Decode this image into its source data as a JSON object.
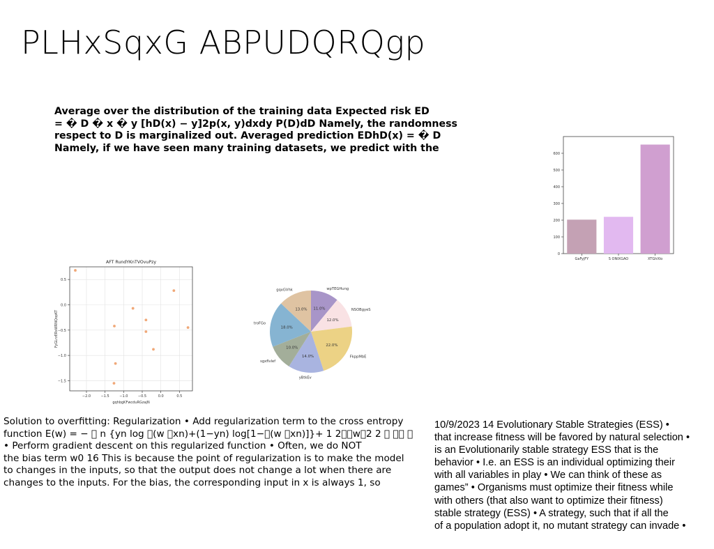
{
  "title": "PLHxSqxG ABPUDQRQgp",
  "bold_paragraph": [
    "Average over the distribution of the training data Expected risk ED",
    "= � D � x � y [hD(x) − y]2p(x, y)dxdy P(D)dD Namely, the randomness",
    "respect to D is marginalized out. Averaged prediction EDhD(x) = � D",
    "Namely, if we have seen many training datasets, we predict with the"
  ],
  "left_paragraph": [
    "Solution to overfitting: Regularization • Add regularization term to the cross entropy",
    "function E(w) = − 􀀀 n {yn log 􀀀(w 􀀀xn)+(1−yn) log[1−􀀀(w 􀀀xn)]}+ 1 2􀀀􀀀w􀀀2 2 􀀀 􀀀􀀀 􀀀",
    "• Perform gradient descent on this regularized function • Often, we do NOT",
    "the bias term w0 16 This is because the point of regularization is to make the model",
    "to changes in the inputs, so that the output does not change a lot when there are",
    "changes to the inputs. For the bias, the corresponding input in x is always 1, so"
  ],
  "right_paragraph": [
    "10/9/2023 14 Evolutionary Stable Strategies (ESS) •",
    "that increase fitness will be favored by natural selection •",
    "is an Evolutionarily stable strategy ESS that is the",
    "behavior • I.e. an ESS is an individual optimizing their",
    "with all variables in play • We can think of these as",
    "games” • Organisms must optimize their fitness while",
    "with others (that also want to optimize their fitness)",
    "stable strategy (ESS) • A strategy, such that if all the",
    "of a population adopt it, no mutant strategy can invade •"
  ],
  "chart_data": [
    {
      "type": "bar",
      "categories": [
        "GaFyjFY",
        "S ONIXGAO",
        "XTGhXIo"
      ],
      "values": [
        203,
        220,
        652
      ],
      "colors": [
        "#c4a1b4",
        "#e2b9f0",
        "#d09fd0"
      ],
      "ylim": [
        0,
        700
      ],
      "yticks": [
        0,
        100,
        200,
        300,
        400,
        500,
        600
      ],
      "grid": false
    },
    {
      "type": "scatter",
      "title": "AFT RundYKnTVOvuPzy",
      "xlabel": "gqhbgKFwcduRGzajN",
      "ylabel": "FyGLrzERsWRNQopKT",
      "xlim": [
        -2.45,
        0.85
      ],
      "ylim": [
        -1.7,
        0.75
      ],
      "xticks": [
        -2.0,
        -1.5,
        -1.0,
        -0.5,
        0.0,
        0.5
      ],
      "yticks": [
        0.5,
        0.0,
        -0.5,
        -1.0,
        -1.5
      ],
      "points": [
        {
          "x": -2.3,
          "y": 0.68
        },
        {
          "x": 0.35,
          "y": 0.28
        },
        {
          "x": -0.75,
          "y": -0.07
        },
        {
          "x": -0.4,
          "y": -0.3
        },
        {
          "x": -1.25,
          "y": -0.42
        },
        {
          "x": -0.4,
          "y": -0.53
        },
        {
          "x": 0.73,
          "y": -0.45
        },
        {
          "x": -0.2,
          "y": -0.88
        },
        {
          "x": -1.22,
          "y": -1.16
        },
        {
          "x": -1.26,
          "y": -1.55
        }
      ],
      "point_color": "#f0a878",
      "grid": true
    },
    {
      "type": "pie",
      "slices": [
        {
          "label": "wpTEGHung",
          "value": 11.0,
          "color": "#a895c8"
        },
        {
          "label": "NSOBgyeS",
          "value": 12.0,
          "color": "#f9e2e4"
        },
        {
          "label": "FkppMbE",
          "value": 22.0,
          "color": "#ecd285"
        },
        {
          "label": "yBtkEv",
          "value": 14.0,
          "color": "#a9b4e0"
        },
        {
          "label": "sgxfIvlef",
          "value": 10.0,
          "color": "#a3ae9a"
        },
        {
          "label": "troFGo",
          "value": 18.0,
          "color": "#86b4d2"
        },
        {
          "label": "gqxGVhk",
          "value": 13.0,
          "color": "#dfc3a2"
        }
      ]
    }
  ]
}
